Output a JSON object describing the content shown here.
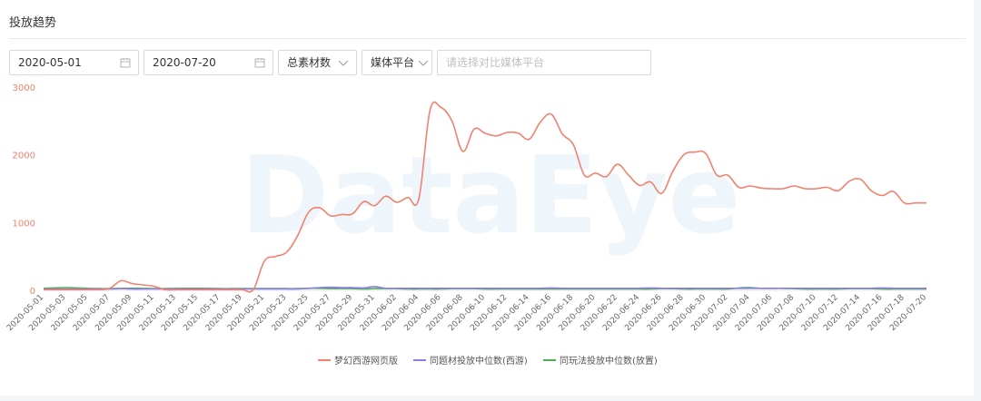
{
  "header": {
    "title": "投放趋势"
  },
  "filters": {
    "start_date": "2020-05-01",
    "end_date": "2020-07-20",
    "metric": "总素材数",
    "platform": "媒体平台",
    "compare_placeholder": "请选择对比媒体平台"
  },
  "icons": {
    "start_date": "calendar-icon",
    "end_date": "calendar-icon",
    "metric": "chevron-down-icon",
    "platform": "chevron-down-icon"
  },
  "watermark": "DataEye",
  "chart_data": {
    "type": "line",
    "ylim": [
      0,
      3000
    ],
    "yticks": [
      0,
      1000,
      2000,
      3000
    ],
    "x": [
      "2020-05-01",
      "2020-05-02",
      "2020-05-03",
      "2020-05-04",
      "2020-05-05",
      "2020-05-06",
      "2020-05-07",
      "2020-05-08",
      "2020-05-09",
      "2020-05-10",
      "2020-05-11",
      "2020-05-12",
      "2020-05-13",
      "2020-05-14",
      "2020-05-15",
      "2020-05-16",
      "2020-05-17",
      "2020-05-18",
      "2020-05-19",
      "2020-05-20",
      "2020-05-21",
      "2020-05-22",
      "2020-05-23",
      "2020-05-24",
      "2020-05-25",
      "2020-05-26",
      "2020-05-27",
      "2020-05-28",
      "2020-05-29",
      "2020-05-30",
      "2020-05-31",
      "2020-06-01",
      "2020-06-02",
      "2020-06-03",
      "2020-06-04",
      "2020-06-05",
      "2020-06-06",
      "2020-06-07",
      "2020-06-08",
      "2020-06-09",
      "2020-06-10",
      "2020-06-11",
      "2020-06-12",
      "2020-06-13",
      "2020-06-14",
      "2020-06-15",
      "2020-06-16",
      "2020-06-17",
      "2020-06-18",
      "2020-06-19",
      "2020-06-20",
      "2020-06-21",
      "2020-06-22",
      "2020-06-23",
      "2020-06-24",
      "2020-06-25",
      "2020-06-26",
      "2020-06-27",
      "2020-06-28",
      "2020-06-29",
      "2020-06-30",
      "2020-07-01",
      "2020-07-02",
      "2020-07-03",
      "2020-07-04",
      "2020-07-05",
      "2020-07-06",
      "2020-07-07",
      "2020-07-08",
      "2020-07-09",
      "2020-07-10",
      "2020-07-11",
      "2020-07-12",
      "2020-07-13",
      "2020-07-14",
      "2020-07-15",
      "2020-07-16",
      "2020-07-17",
      "2020-07-18",
      "2020-07-19",
      "2020-07-20"
    ],
    "x_tick_labels": [
      "2020-05-01",
      "2020-05-03",
      "2020-05-05",
      "2020-05-07",
      "2020-05-09",
      "2020-05-11",
      "2020-05-13",
      "2020-05-15",
      "2020-05-17",
      "2020-05-19",
      "2020-05-21",
      "2020-05-23",
      "2020-05-25",
      "2020-05-27",
      "2020-05-29",
      "2020-05-31",
      "2020-06-02",
      "2020-06-04",
      "2020-06-06",
      "2020-06-08",
      "2020-06-10",
      "2020-06-12",
      "2020-06-14",
      "2020-06-16",
      "2020-06-18",
      "2020-06-20",
      "2020-06-22",
      "2020-06-24",
      "2020-06-26",
      "2020-06-28",
      "2020-06-30",
      "2020-07-02",
      "2020-07-04",
      "2020-07-06",
      "2020-07-08",
      "2020-07-10",
      "2020-07-12",
      "2020-07-14",
      "2020-07-16",
      "2020-07-18",
      "2020-07-20"
    ],
    "series": [
      {
        "name": "梦幻西游网页版",
        "color": "#f0826e",
        "values": [
          10,
          10,
          10,
          10,
          10,
          10,
          30,
          140,
          100,
          80,
          60,
          10,
          10,
          10,
          10,
          10,
          10,
          10,
          10,
          10,
          430,
          500,
          560,
          800,
          1150,
          1220,
          1100,
          1120,
          1130,
          1310,
          1250,
          1390,
          1300,
          1370,
          1350,
          2650,
          2700,
          2500,
          2050,
          2380,
          2320,
          2280,
          2330,
          2320,
          2230,
          2480,
          2600,
          2310,
          2150,
          1700,
          1730,
          1680,
          1860,
          1700,
          1550,
          1600,
          1430,
          1750,
          2000,
          2040,
          2020,
          1700,
          1700,
          1520,
          1540,
          1510,
          1500,
          1500,
          1540,
          1500,
          1500,
          1520,
          1470,
          1610,
          1640,
          1470,
          1400,
          1460,
          1290,
          1290,
          1290
        ]
      },
      {
        "name": "同题材投放中位数(西游)",
        "color": "#8b7ee8",
        "values": [
          20,
          20,
          20,
          20,
          20,
          20,
          20,
          25,
          20,
          20,
          20,
          20,
          20,
          20,
          20,
          20,
          20,
          20,
          20,
          20,
          20,
          20,
          20,
          20,
          30,
          40,
          45,
          40,
          40,
          35,
          55,
          30,
          30,
          30,
          30,
          30,
          30,
          30,
          30,
          30,
          30,
          30,
          30,
          30,
          30,
          30,
          35,
          30,
          30,
          30,
          30,
          30,
          30,
          30,
          30,
          35,
          30,
          30,
          30,
          30,
          30,
          30,
          30,
          30,
          30,
          30,
          30,
          30,
          30,
          30,
          30,
          30,
          30,
          30,
          30,
          30,
          35,
          30,
          30,
          30,
          30
        ]
      },
      {
        "name": "同玩法投放中位数(放置)",
        "color": "#4caf50",
        "values": [
          30,
          35,
          40,
          35,
          30,
          25,
          25,
          30,
          30,
          30,
          25,
          25,
          30,
          30,
          30,
          30,
          25,
          25,
          25,
          25,
          25,
          25,
          25,
          25,
          30,
          30,
          25,
          25,
          25,
          20,
          25,
          25,
          25,
          20,
          20,
          20,
          20,
          25,
          25,
          25,
          20,
          20,
          20,
          20,
          20,
          20,
          20,
          20,
          20,
          20,
          20,
          20,
          20,
          20,
          20,
          20,
          25,
          25,
          20,
          20,
          20,
          20,
          20,
          35,
          40,
          30,
          30,
          30,
          25,
          20,
          20,
          20,
          20,
          25,
          25,
          25,
          20,
          20,
          20,
          20,
          20
        ]
      }
    ]
  }
}
